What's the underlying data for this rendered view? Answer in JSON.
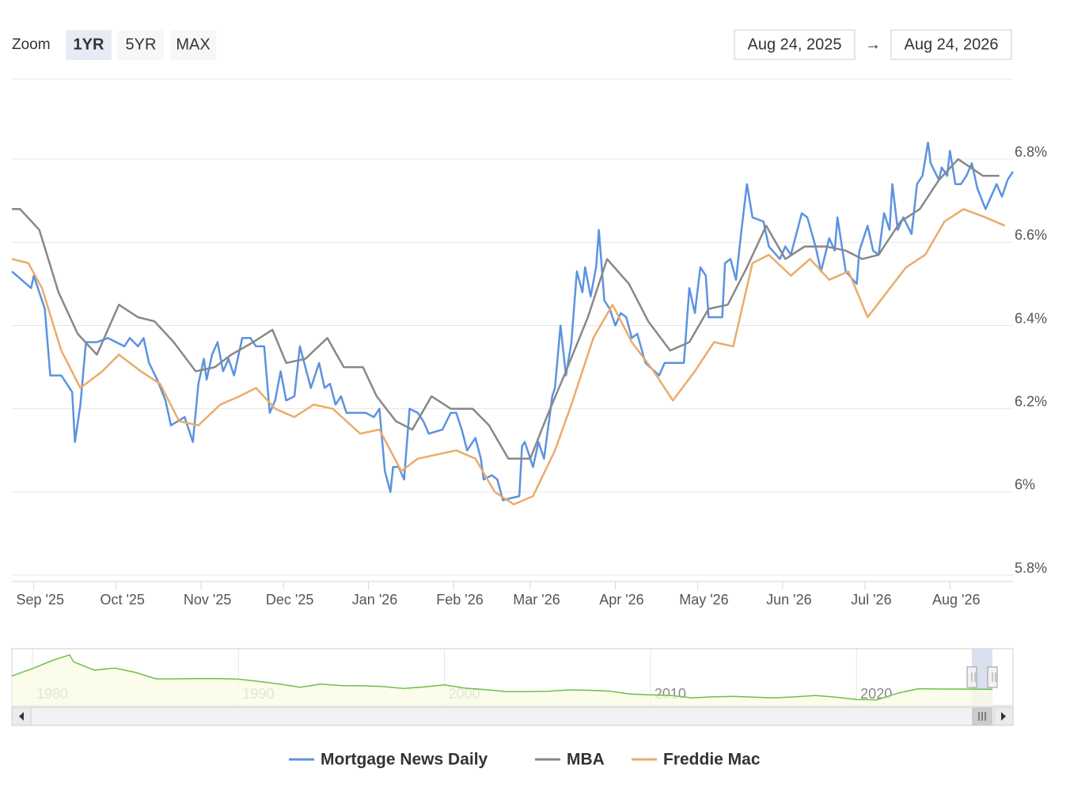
{
  "range_selector": {
    "label": "Zoom",
    "buttons": [
      "1YR",
      "5YR",
      "MAX"
    ],
    "from": "Aug 24, 2025",
    "arrow": "→",
    "to": "Aug 24, 2026"
  },
  "chart_data": {
    "type": "line",
    "xlim": [
      "2025-08-24",
      "2026-08-24"
    ],
    "xticks": [
      {
        "value": "2025-09-01",
        "label": "Sep '25"
      },
      {
        "value": "2025-10-01",
        "label": "Oct '25"
      },
      {
        "value": "2025-11-01",
        "label": "Nov '25"
      },
      {
        "value": "2025-12-01",
        "label": "Dec '25"
      },
      {
        "value": "2026-01-01",
        "label": "Jan '26"
      },
      {
        "value": "2026-02-01",
        "label": "Feb '26"
      },
      {
        "value": "2026-03-01",
        "label": "Mar '26"
      },
      {
        "value": "2026-04-01",
        "label": "Apr '26"
      },
      {
        "value": "2026-05-01",
        "label": "May '26"
      },
      {
        "value": "2026-06-01",
        "label": "Jun '26"
      },
      {
        "value": "2026-07-01",
        "label": "Jul '26"
      },
      {
        "value": "2026-08-01",
        "label": "Aug '26"
      }
    ],
    "ylim": [
      5.8,
      7.0
    ],
    "yticks": [
      {
        "value": 5.8,
        "label": "5.8%"
      },
      {
        "value": 6,
        "label": "6%"
      },
      {
        "value": 6.2,
        "label": "6.2%"
      },
      {
        "value": 6.4,
        "label": "6.4%"
      },
      {
        "value": 6.6,
        "label": "6.6%"
      },
      {
        "value": 6.8,
        "label": "6.8%"
      }
    ],
    "grid": true,
    "series": [
      {
        "name": "Mortgage News Daily",
        "color": "#5b93e0",
        "x": [
          "2025-08-24",
          "2025-08-31",
          "2025-09-01",
          "2025-09-05",
          "2025-09-07",
          "2025-09-11",
          "2025-09-15",
          "2025-09-16",
          "2025-09-18",
          "2025-09-20",
          "2025-09-24",
          "2025-09-28",
          "2025-10-04",
          "2025-10-06",
          "2025-10-09",
          "2025-10-11",
          "2025-10-13",
          "2025-10-16",
          "2025-10-19",
          "2025-10-21",
          "2025-10-26",
          "2025-10-29",
          "2025-10-31",
          "2025-11-02",
          "2025-11-03",
          "2025-11-05",
          "2025-11-07",
          "2025-11-09",
          "2025-11-11",
          "2025-11-13",
          "2025-11-16",
          "2025-11-19",
          "2025-11-21",
          "2025-11-24",
          "2025-11-26",
          "2025-11-28",
          "2025-11-30",
          "2025-12-02",
          "2025-12-05",
          "2025-12-07",
          "2025-12-09",
          "2025-12-11",
          "2025-12-14",
          "2025-12-16",
          "2025-12-18",
          "2025-12-20",
          "2025-12-22",
          "2025-12-24",
          "2025-12-31",
          "2026-01-03",
          "2026-01-05",
          "2026-01-07",
          "2026-01-09",
          "2026-01-10",
          "2026-01-12",
          "2026-01-14",
          "2026-01-16",
          "2026-01-19",
          "2026-01-21",
          "2026-01-23",
          "2026-01-28",
          "2026-01-31",
          "2026-02-02",
          "2026-02-04",
          "2026-02-06",
          "2026-02-09",
          "2026-02-11",
          "2026-02-12",
          "2026-02-15",
          "2026-02-17",
          "2026-02-19",
          "2026-02-25",
          "2026-02-26",
          "2026-02-27",
          "2026-03-02",
          "2026-03-04",
          "2026-03-06",
          "2026-03-09",
          "2026-03-10",
          "2026-03-12",
          "2026-03-14",
          "2026-03-16",
          "2026-03-18",
          "2026-03-20",
          "2026-03-21",
          "2026-03-23",
          "2026-03-25",
          "2026-03-26",
          "2026-03-28",
          "2026-03-30",
          "2026-04-01",
          "2026-04-03",
          "2026-04-05",
          "2026-04-07",
          "2026-04-09",
          "2026-04-12",
          "2026-04-17",
          "2026-04-19",
          "2026-04-26",
          "2026-04-28",
          "2026-04-30",
          "2026-05-02",
          "2026-05-04",
          "2026-05-05",
          "2026-05-10",
          "2026-05-11",
          "2026-05-13",
          "2026-05-15",
          "2026-05-17",
          "2026-05-19",
          "2026-05-21",
          "2026-05-25",
          "2026-05-27",
          "2026-05-31",
          "2026-06-02",
          "2026-06-04",
          "2026-06-06",
          "2026-06-08",
          "2026-06-10",
          "2026-06-13",
          "2026-06-15",
          "2026-06-18",
          "2026-06-20",
          "2026-06-21",
          "2026-06-24",
          "2026-06-28",
          "2026-06-29",
          "2026-07-02",
          "2026-07-04",
          "2026-07-06",
          "2026-07-08",
          "2026-07-10",
          "2026-07-11",
          "2026-07-13",
          "2026-07-15",
          "2026-07-18",
          "2026-07-20",
          "2026-07-22",
          "2026-07-24",
          "2026-07-25",
          "2026-07-28",
          "2026-07-29",
          "2026-07-31",
          "2026-08-01",
          "2026-08-03",
          "2026-08-05",
          "2026-08-07",
          "2026-08-09",
          "2026-08-11",
          "2026-08-14",
          "2026-08-18",
          "2026-08-20",
          "2026-08-22",
          "2026-08-24"
        ],
        "values": [
          6.53,
          6.49,
          6.52,
          6.44,
          6.28,
          6.28,
          6.24,
          6.12,
          6.21,
          6.36,
          6.36,
          6.37,
          6.35,
          6.37,
          6.35,
          6.37,
          6.31,
          6.27,
          6.22,
          6.16,
          6.18,
          6.12,
          6.26,
          6.32,
          6.27,
          6.33,
          6.36,
          6.29,
          6.32,
          6.28,
          6.37,
          6.37,
          6.35,
          6.35,
          6.19,
          6.22,
          6.29,
          6.22,
          6.23,
          6.35,
          6.3,
          6.25,
          6.31,
          6.25,
          6.26,
          6.21,
          6.23,
          6.19,
          6.19,
          6.18,
          6.2,
          6.05,
          6.0,
          6.06,
          6.06,
          6.03,
          6.2,
          6.19,
          6.17,
          6.14,
          6.15,
          6.19,
          6.19,
          6.15,
          6.1,
          6.13,
          6.08,
          6.03,
          6.04,
          6.03,
          5.98,
          5.99,
          6.11,
          6.12,
          6.06,
          6.12,
          6.08,
          6.23,
          6.25,
          6.4,
          6.28,
          6.36,
          6.53,
          6.48,
          6.54,
          6.47,
          6.54,
          6.63,
          6.46,
          6.44,
          6.4,
          6.43,
          6.42,
          6.37,
          6.38,
          6.31,
          6.28,
          6.31,
          6.31,
          6.49,
          6.43,
          6.54,
          6.52,
          6.42,
          6.42,
          6.55,
          6.56,
          6.51,
          6.63,
          6.74,
          6.66,
          6.65,
          6.59,
          6.56,
          6.59,
          6.57,
          6.62,
          6.67,
          6.66,
          6.59,
          6.53,
          6.61,
          6.58,
          6.66,
          6.53,
          6.5,
          6.58,
          6.64,
          6.58,
          6.57,
          6.67,
          6.63,
          6.74,
          6.63,
          6.66,
          6.62,
          6.74,
          6.76,
          6.84,
          6.79,
          6.75,
          6.78,
          6.76,
          6.82,
          6.74,
          6.74,
          6.76,
          6.79,
          6.73,
          6.68,
          6.74,
          6.71,
          6.75,
          6.77
        ]
      },
      {
        "name": "MBA",
        "color": "#888888",
        "x": [
          "2025-08-24",
          "2025-08-27",
          "2025-09-03",
          "2025-09-10",
          "2025-09-17",
          "2025-09-24",
          "2025-10-02",
          "2025-10-09",
          "2025-10-15",
          "2025-10-22",
          "2025-10-30",
          "2025-11-06",
          "2025-11-12",
          "2025-11-20",
          "2025-11-27",
          "2025-12-02",
          "2025-12-09",
          "2025-12-17",
          "2025-12-23",
          "2025-12-30",
          "2026-01-04",
          "2026-01-11",
          "2026-01-17",
          "2026-01-24",
          "2026-01-31",
          "2026-02-08",
          "2026-02-14",
          "2026-02-21",
          "2026-03-01",
          "2026-03-07",
          "2026-03-14",
          "2026-03-22",
          "2026-03-29",
          "2026-04-06",
          "2026-04-13",
          "2026-04-21",
          "2026-04-28",
          "2026-05-05",
          "2026-05-12",
          "2026-05-19",
          "2026-05-26",
          "2026-06-02",
          "2026-06-09",
          "2026-06-17",
          "2026-06-24",
          "2026-06-30",
          "2026-07-06",
          "2026-07-14",
          "2026-07-21",
          "2026-07-28",
          "2026-08-04",
          "2026-08-13",
          "2026-08-19"
        ],
        "values": [
          6.68,
          6.68,
          6.63,
          6.48,
          6.38,
          6.33,
          6.45,
          6.42,
          6.41,
          6.36,
          6.29,
          6.3,
          6.33,
          6.36,
          6.39,
          6.31,
          6.32,
          6.37,
          6.3,
          6.3,
          6.23,
          6.17,
          6.15,
          6.23,
          6.2,
          6.2,
          6.16,
          6.08,
          6.08,
          6.18,
          6.29,
          6.42,
          6.56,
          6.5,
          6.41,
          6.34,
          6.36,
          6.44,
          6.45,
          6.54,
          6.64,
          6.56,
          6.59,
          6.59,
          6.58,
          6.56,
          6.57,
          6.65,
          6.68,
          6.75,
          6.8,
          6.76,
          6.76
        ]
      },
      {
        "name": "Freddie Mac",
        "color": "#ebab6b",
        "x": [
          "2025-08-24",
          "2025-08-30",
          "2025-09-04",
          "2025-09-11",
          "2025-09-18",
          "2025-09-26",
          "2025-10-02",
          "2025-10-10",
          "2025-10-17",
          "2025-10-24",
          "2025-10-31",
          "2025-11-08",
          "2025-11-15",
          "2025-11-21",
          "2025-11-28",
          "2025-12-05",
          "2025-12-12",
          "2025-12-19",
          "2025-12-29",
          "2026-01-05",
          "2026-01-13",
          "2026-01-19",
          "2026-02-02",
          "2026-02-09",
          "2026-02-16",
          "2026-02-23",
          "2026-03-02",
          "2026-03-10",
          "2026-03-16",
          "2026-03-24",
          "2026-03-31",
          "2026-04-07",
          "2026-04-15",
          "2026-04-22",
          "2026-04-30",
          "2026-05-07",
          "2026-05-14",
          "2026-05-21",
          "2026-05-27",
          "2026-06-04",
          "2026-06-11",
          "2026-06-18",
          "2026-06-25",
          "2026-07-02",
          "2026-07-09",
          "2026-07-16",
          "2026-07-23",
          "2026-07-30",
          "2026-08-06",
          "2026-08-14",
          "2026-08-21"
        ],
        "values": [
          6.56,
          6.55,
          6.49,
          6.34,
          6.25,
          6.29,
          6.33,
          6.29,
          6.26,
          6.17,
          6.16,
          6.21,
          6.23,
          6.25,
          6.2,
          6.18,
          6.21,
          6.2,
          6.14,
          6.15,
          6.05,
          6.08,
          6.1,
          6.08,
          6.0,
          5.97,
          5.99,
          6.1,
          6.21,
          6.37,
          6.45,
          6.36,
          6.29,
          6.22,
          6.29,
          6.36,
          6.35,
          6.55,
          6.57,
          6.52,
          6.56,
          6.51,
          6.53,
          6.42,
          6.48,
          6.54,
          6.57,
          6.65,
          6.68,
          6.66,
          6.64
        ]
      }
    ]
  },
  "navigator": {
    "type": "line",
    "color": "#6cc04a",
    "xlim": [
      1979,
      2027.6
    ],
    "ylim": [
      1,
      20
    ],
    "xticks": [
      1980,
      1990,
      2000,
      2010,
      2020
    ],
    "x": [
      1979,
      1980,
      1981,
      1981.8,
      1982,
      1983,
      1984,
      1985,
      1986,
      1987,
      1988,
      1989,
      1990,
      1991,
      1992,
      1993,
      1994,
      1995,
      1996,
      1997,
      1998,
      1999,
      2000,
      2001,
      2002,
      2003,
      2004,
      2005,
      2006,
      2007,
      2008,
      2009,
      2010,
      2011,
      2012,
      2013,
      2014,
      2015,
      2016,
      2017,
      2018,
      2019,
      2020,
      2021,
      2022,
      2023,
      2024,
      2025,
      2026.6
    ],
    "values": [
      11.2,
      13.7,
      16.6,
      18.4,
      16,
      13.2,
      13.9,
      12.4,
      10.2,
      10.2,
      10.3,
      10.3,
      10.1,
      9.3,
      8.4,
      7.3,
      8.4,
      7.9,
      7.8,
      7.6,
      6.9,
      7.4,
      8.1,
      7.0,
      6.5,
      5.8,
      5.8,
      5.9,
      6.4,
      6.3,
      6.0,
      5.0,
      4.7,
      4.5,
      3.7,
      4.0,
      4.2,
      3.9,
      3.7,
      4.0,
      4.5,
      3.9,
      3.1,
      3.0,
      5.3,
      6.8,
      6.7,
      6.7,
      6.6
    ]
  }
}
